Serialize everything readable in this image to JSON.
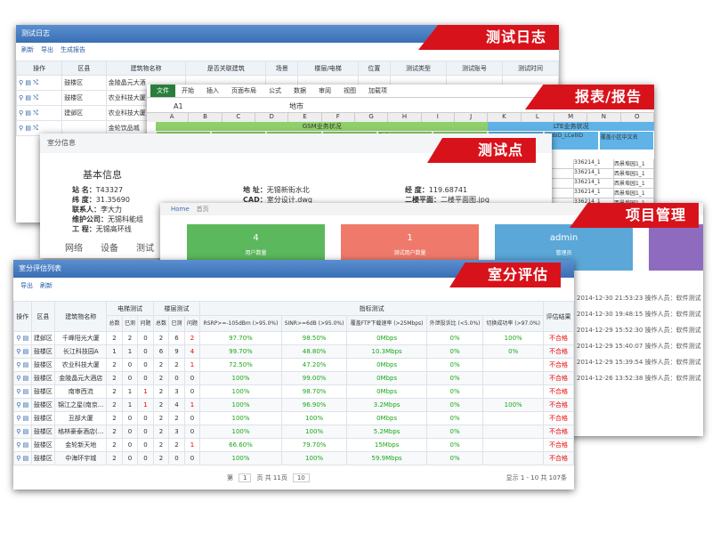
{
  "callouts": [
    "测试日志",
    "报表/报告",
    "测试点",
    "项目管理",
    "室分评估"
  ],
  "log_window": {
    "title": "测试日志",
    "toolbar": [
      "刷新",
      "导出",
      "生成报告"
    ],
    "columns": [
      "操作",
      "区县",
      "建筑物名称",
      "是否关联建筑",
      "场景",
      "楼层/电梯",
      "位置",
      "测试类型",
      "测试账号",
      "测试时间"
    ],
    "rows": [
      [
        "鼓楼区",
        "金陵晶元大酒"
      ],
      [
        "鼓楼区",
        "农业科技大厦"
      ],
      [
        "建邺区",
        "农业科技大厦"
      ],
      [
        "",
        "金轮饮品城"
      ]
    ]
  },
  "excel": {
    "tabs": [
      "文件",
      "开始",
      "插入",
      "页面布局",
      "公式",
      "数据",
      "审阅",
      "视图",
      "加载项"
    ],
    "cell_ref": "A1",
    "formula": "地市",
    "columns": [
      "A",
      "B",
      "C",
      "D",
      "E",
      "F",
      "G",
      "H",
      "I",
      "J",
      "K",
      "L",
      "M",
      "N",
      "O"
    ],
    "headers": [
      "GSM业务状况",
      "LTE业务状况",
      "地市",
      "八大区域",
      "测试区域",
      "建筑名",
      "Rxlev",
      "备注（自定门",
      "覆盖小区PCI",
      "eNBID_LCellID",
      "覆盖小区中文名"
    ],
    "rows": [
      [
        "321",
        "336214_1",
        "西景埠园1_1"
      ],
      [
        "321",
        "336214_1",
        "西景埠园1_1"
      ],
      [
        "321",
        "336214_1",
        "西景埠园1_1"
      ],
      [
        "321",
        "336214_1",
        "西景埠园1_1"
      ],
      [
        "321",
        "336214_1",
        "西景埠园1_1"
      ],
      [
        "321",
        "336214_1",
        "西景埠园1_1"
      ],
      [
        "321",
        "336214_1",
        "西景埠园1_1"
      ],
      [
        "321",
        "336214_1",
        "西景埠园1_1"
      ]
    ]
  },
  "info": {
    "title": "室分信息",
    "section": "基本信息",
    "left": [
      [
        "站 名：",
        "T43327"
      ],
      [
        "纬 度：",
        "31.35690"
      ],
      [
        "联系人：",
        "李大力"
      ],
      [
        "维护公司：",
        "无锡科能组"
      ],
      [
        "工 程：",
        "无锡高环线"
      ]
    ],
    "mid": [
      [
        "地 址：",
        "无锡新街水北"
      ],
      [
        "CAD：",
        "室分设计.dwg"
      ]
    ],
    "right": [
      [
        "经 度：",
        "119.68741"
      ],
      [
        "二楼平面：",
        "二楼平面图.jpg"
      ]
    ],
    "tabs": [
      "网络",
      "设备",
      "测试"
    ]
  },
  "dashboard": {
    "crumbs": [
      "Home",
      "首页"
    ],
    "cards": [
      {
        "value": "4",
        "label": "用户数量",
        "color": "#5cb85c"
      },
      {
        "value": "1",
        "label": "测试用户数量",
        "color": "#ef7a6b"
      },
      {
        "value": "admin",
        "label": "管理员",
        "color": "#5aa7d8"
      },
      {
        "value": "",
        "label": "",
        "color": "#8e6bbf"
      }
    ],
    "logs": [
      "2014-12-30 21:53:23 操作人员：软件测试",
      "2014-12-30 19:48:15 操作人员：软件测试",
      "2014-12-29 15:52:30 操作人员：软件测试",
      "2014-12-29 15:40:07 操作人员：软件测试",
      "2014-12-29 15:39:54 操作人员：软件测试",
      "2014-12-26 13:52:38 操作人员：软件测试"
    ]
  },
  "eval": {
    "title": "室分评估列表",
    "toolbar": [
      "导出",
      "刷新"
    ],
    "groups": [
      "电梯测试",
      "楼层测试",
      "指标测试"
    ],
    "columns": [
      "操作",
      "区县",
      "建筑物名称",
      "总数",
      "已测",
      "问题",
      "总数",
      "已测",
      "问题",
      "RSRP>=-105dBm (>95.0%)",
      "SINR>=6dB (>95.0%)",
      "覆盖FTP下载速率 (>25Mbps)",
      "外泄投诉比 (<5.0%)",
      "切换成功率 (>97.0%)",
      "评估结果"
    ],
    "rows": [
      [
        "建邺区",
        "千峰阳光大厦",
        "2",
        "2",
        "0",
        "2",
        "6",
        "2",
        "97.70%",
        "98.50%",
        "0Mbps",
        "0%",
        "100%",
        "不合格"
      ],
      [
        "鼓楼区",
        "长江科技园A",
        "1",
        "1",
        "0",
        "6",
        "9",
        "4",
        "99.70%",
        "48.80%",
        "10.3Mbps",
        "0%",
        "0%",
        "不合格"
      ],
      [
        "鼓楼区",
        "农业科技大厦",
        "2",
        "0",
        "0",
        "2",
        "2",
        "1",
        "72.50%",
        "47.20%",
        "0Mbps",
        "0%",
        "",
        "不合格"
      ],
      [
        "鼓楼区",
        "金陵晶元大酒店",
        "2",
        "0",
        "0",
        "2",
        "0",
        "0",
        "100%",
        "99.00%",
        "0Mbps",
        "0%",
        "",
        "不合格"
      ],
      [
        "鼓楼区",
        "南审西流",
        "2",
        "1",
        "1",
        "2",
        "3",
        "0",
        "100%",
        "98.70%",
        "0Mbps",
        "0%",
        "",
        "不合格"
      ],
      [
        "鼓楼区",
        "锦江之星(南京...",
        "2",
        "1",
        "1",
        "2",
        "4",
        "1",
        "100%",
        "96.90%",
        "3.2Mbps",
        "0%",
        "100%",
        "不合格"
      ],
      [
        "鼓楼区",
        "丑部大厦",
        "2",
        "0",
        "0",
        "2",
        "2",
        "0",
        "100%",
        "100%",
        "0Mbps",
        "0%",
        "",
        "不合格"
      ],
      [
        "鼓楼区",
        "格林豪泰酒店(...",
        "2",
        "0",
        "0",
        "2",
        "3",
        "0",
        "100%",
        "100%",
        "5.2Mbps",
        "0%",
        "",
        "不合格"
      ],
      [
        "鼓楼区",
        "金轮新天地",
        "2",
        "0",
        "0",
        "2",
        "2",
        "1",
        "66.60%",
        "79.70%",
        "15Mbps",
        "0%",
        "",
        "不合格"
      ],
      [
        "鼓楼区",
        "中海环宇城",
        "2",
        "0",
        "0",
        "2",
        "0",
        "0",
        "100%",
        "100%",
        "59.9Mbps",
        "0%",
        "",
        "不合格"
      ]
    ],
    "pager": [
      "第",
      "1",
      "页 共 11页",
      "10",
      "显示 1 - 10 共 107条"
    ]
  }
}
